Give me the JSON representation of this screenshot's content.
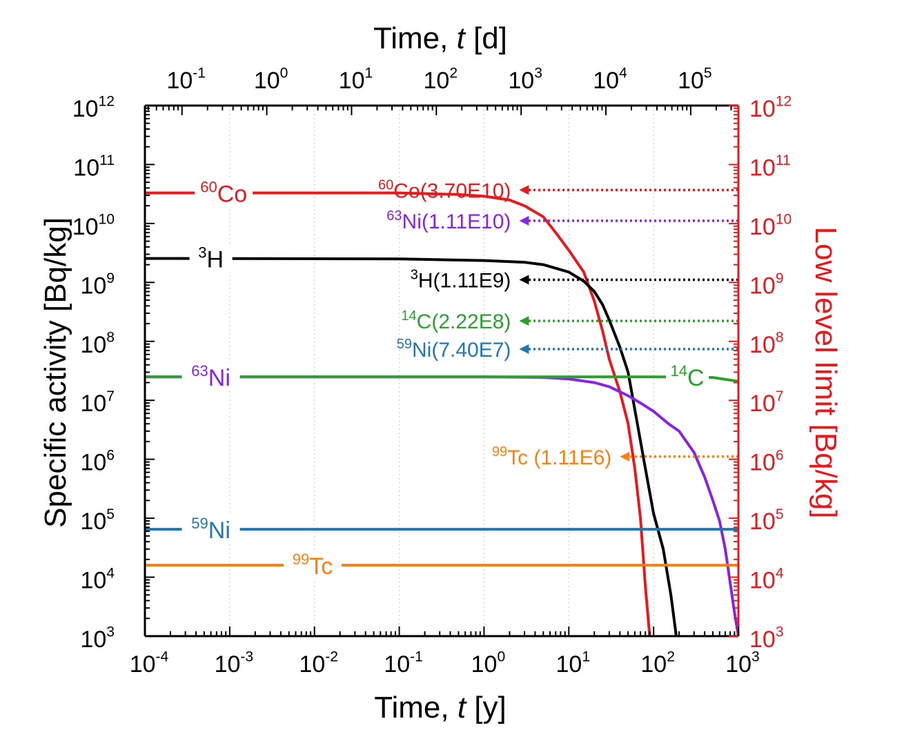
{
  "chart_data": {
    "type": "line",
    "x_scale": "log",
    "y_scale": "log",
    "xlim": [
      0.0001,
      1000
    ],
    "ylim": [
      1000,
      1000000000000
    ],
    "xlabel_bottom": {
      "main": "Time, ",
      "var": "t",
      "unit": " [y]"
    },
    "xlabel_top": {
      "main": "Time, ",
      "var": "t",
      "unit": " [d]"
    },
    "ylabel_left": "Specific activity [Bq/kg]",
    "ylabel_right": "Low level limit [Bq/kg]",
    "bottom_ticks": [
      {
        "base": "10",
        "exp": "-4"
      },
      {
        "base": "10",
        "exp": "-3"
      },
      {
        "base": "10",
        "exp": "-2"
      },
      {
        "base": "10",
        "exp": "-1"
      },
      {
        "base": "10",
        "exp": "0"
      },
      {
        "base": "10",
        "exp": "1"
      },
      {
        "base": "10",
        "exp": "2"
      },
      {
        "base": "10",
        "exp": "3"
      }
    ],
    "top_ticks": [
      {
        "base": "10",
        "exp": "-1",
        "days": 0.1
      },
      {
        "base": "10",
        "exp": "0",
        "days": 1
      },
      {
        "base": "10",
        "exp": "1",
        "days": 10
      },
      {
        "base": "10",
        "exp": "2",
        "days": 100
      },
      {
        "base": "10",
        "exp": "3",
        "days": 1000
      },
      {
        "base": "10",
        "exp": "4",
        "days": 10000
      },
      {
        "base": "10",
        "exp": "5",
        "days": 100000
      }
    ],
    "left_ticks": [
      {
        "base": "10",
        "exp": "3"
      },
      {
        "base": "10",
        "exp": "4"
      },
      {
        "base": "10",
        "exp": "5"
      },
      {
        "base": "10",
        "exp": "6"
      },
      {
        "base": "10",
        "exp": "7"
      },
      {
        "base": "10",
        "exp": "8"
      },
      {
        "base": "10",
        "exp": "9"
      },
      {
        "base": "10",
        "exp": "10"
      },
      {
        "base": "10",
        "exp": "11"
      },
      {
        "base": "10",
        "exp": "12"
      }
    ],
    "right_ticks": [
      {
        "base": "10",
        "exp": "3"
      },
      {
        "base": "10",
        "exp": "4"
      },
      {
        "base": "10",
        "exp": "5"
      },
      {
        "base": "10",
        "exp": "6"
      },
      {
        "base": "10",
        "exp": "7"
      },
      {
        "base": "10",
        "exp": "8"
      },
      {
        "base": "10",
        "exp": "9"
      },
      {
        "base": "10",
        "exp": "10"
      },
      {
        "base": "10",
        "exp": "11"
      },
      {
        "base": "10",
        "exp": "12"
      }
    ],
    "series": [
      {
        "name": "Co",
        "mass": "60",
        "color": "#e8191c",
        "label_x": 0.00085,
        "label_y": 33000000000,
        "x": [
          0.0001,
          0.1,
          0.5,
          1,
          2,
          3,
          5,
          7,
          10,
          15,
          20,
          25,
          30,
          40,
          50,
          60,
          70,
          80,
          90
        ],
        "y": [
          33000000000,
          33000000000,
          31000000000,
          29000000000,
          25000000000,
          20000000000,
          13000000000,
          7000000000,
          3500000000,
          1500000000,
          480000000,
          150000000,
          50000000,
          14000000,
          4000000,
          700000,
          100000,
          7000,
          1000
        ]
      },
      {
        "name": "H",
        "mass": "3",
        "color": "#000000",
        "label_x": 0.0006,
        "label_y": 2550000000,
        "x": [
          0.0001,
          0.1,
          1,
          3,
          5,
          10,
          15,
          20,
          25,
          30,
          40,
          50,
          60,
          80,
          100,
          130,
          160,
          185
        ],
        "y": [
          2550000000,
          2500000000,
          2350000000,
          2200000000,
          2000000000,
          1500000000,
          1050000000,
          700000000,
          420000000,
          230000000,
          80000000,
          30000000,
          7000000,
          700000,
          120000,
          30000,
          5000,
          1000
        ]
      },
      {
        "name": "Ni",
        "mass": "63",
        "color": "#8a22e4",
        "label_x": 0.0006,
        "label_y": 25000000,
        "x": [
          0.0001,
          1,
          5,
          10,
          20,
          30,
          50,
          70,
          100,
          150,
          200,
          300,
          400,
          500,
          600,
          700,
          800,
          900,
          1000
        ],
        "y": [
          25000000,
          25000000,
          24500000,
          23000000,
          20000000,
          17000000,
          12000000,
          9000000,
          6500000,
          4000000,
          3000000,
          1300000,
          500000,
          200000,
          90000,
          30000,
          8000,
          2500,
          1000
        ]
      },
      {
        "name": "C",
        "mass": "14",
        "color": "#2ca02c",
        "label_x": 250,
        "label_y": 23000000,
        "x": [
          0.0001,
          100,
          200,
          500,
          1000
        ],
        "y": [
          25000000,
          25000000,
          24900000,
          24400000,
          21000000
        ]
      },
      {
        "name": "Ni",
        "mass": "59",
        "color": "#1f77b4",
        "label_x": 0.0006,
        "label_y": 65000000,
        "x": [
          0.0001,
          1000
        ],
        "y": [
          65000,
          65000
        ]
      },
      {
        "name": "Tc",
        "mass": "99",
        "color": "#ff7f0e",
        "label_x": 0.0095,
        "label_y": 16000,
        "x": [
          0.0001,
          1000
        ],
        "y": [
          16000,
          16000
        ]
      }
    ],
    "limits": [
      {
        "mass": "60",
        "name": "Co(3.70E10)",
        "value": 37000000000,
        "color": "#e8191c",
        "arrow_x": 2.6
      },
      {
        "mass": "63",
        "name": "Ni(1.11E10)",
        "value": 11100000000,
        "color": "#8a22e4",
        "arrow_x": 2.6
      },
      {
        "mass": "3",
        "name": "H(1.11E9)",
        "value": 1110000000,
        "color": "#000000",
        "arrow_x": 2.6
      },
      {
        "mass": "14",
        "name": "C(2.22E8)",
        "value": 222000000,
        "color": "#2ca02c",
        "arrow_x": 2.6
      },
      {
        "mass": "59",
        "name": "Ni(7.40E7)",
        "value": 74000000,
        "color": "#1f77b4",
        "arrow_x": 2.6
      },
      {
        "mass": "99",
        "name": "Tc (1.11E6)",
        "value": 1110000,
        "color": "#ff7f0e",
        "arrow_x": 40
      }
    ],
    "grid": {
      "x": true,
      "y": false
    },
    "colors": {
      "axis": "#000000",
      "right_axis": "#e8191c",
      "grid": "#cccccc"
    }
  }
}
